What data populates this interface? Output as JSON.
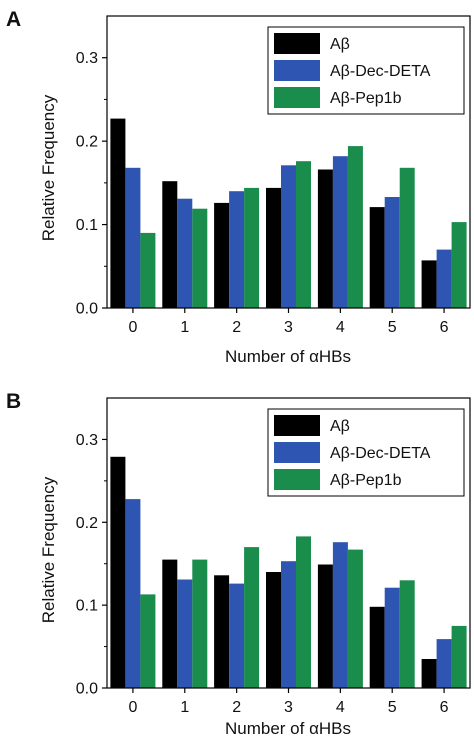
{
  "chart_data": [
    {
      "type": "bar",
      "panel": "A",
      "categories": [
        "0",
        "1",
        "2",
        "3",
        "4",
        "5",
        "6"
      ],
      "series": [
        {
          "name": "Aβ",
          "color": "#000000",
          "values": [
            0.227,
            0.152,
            0.126,
            0.144,
            0.166,
            0.121,
            0.057
          ]
        },
        {
          "name": "Aβ-Dec-DETA",
          "color": "#2f55b2",
          "values": [
            0.168,
            0.131,
            0.14,
            0.171,
            0.182,
            0.133,
            0.07
          ]
        },
        {
          "name": "Aβ-Pep1b",
          "color": "#1a8c4c",
          "values": [
            0.09,
            0.119,
            0.144,
            0.176,
            0.194,
            0.168,
            0.103
          ]
        }
      ],
      "xlabel": "Number of αHBs",
      "ylabel": "Relative Frequency",
      "ylim": [
        0,
        0.35
      ],
      "yticks": [
        "0.0",
        "0.1",
        "0.2",
        "0.3"
      ],
      "legend_position": "top-right",
      "grid": false
    },
    {
      "type": "bar",
      "panel": "B",
      "categories": [
        "0",
        "1",
        "2",
        "3",
        "4",
        "5",
        "6"
      ],
      "series": [
        {
          "name": "Aβ",
          "color": "#000000",
          "values": [
            0.279,
            0.155,
            0.136,
            0.14,
            0.149,
            0.098,
            0.035
          ]
        },
        {
          "name": "Aβ-Dec-DETA",
          "color": "#2f55b2",
          "values": [
            0.228,
            0.131,
            0.126,
            0.153,
            0.176,
            0.121,
            0.059
          ]
        },
        {
          "name": "Aβ-Pep1b",
          "color": "#1a8c4c",
          "values": [
            0.113,
            0.155,
            0.17,
            0.183,
            0.167,
            0.13,
            0.075
          ]
        }
      ],
      "xlabel": "Number of αHBs",
      "ylabel": "Relative Frequency",
      "ylim": [
        0,
        0.35
      ],
      "yticks": [
        "0.0",
        "0.1",
        "0.2",
        "0.3"
      ],
      "legend_position": "top-right",
      "grid": false
    }
  ]
}
